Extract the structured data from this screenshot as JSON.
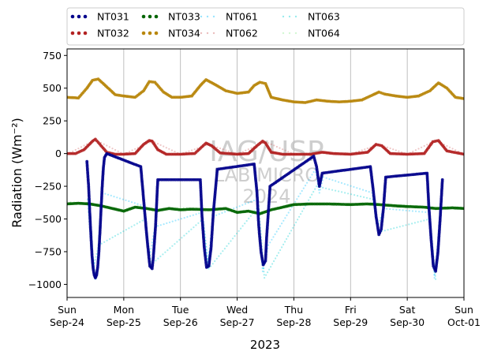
{
  "chart_data": {
    "type": "scatter",
    "xlabel": "2023",
    "ylabel": "Radiation (Wm⁻²)",
    "ylim": [
      -1100,
      800
    ],
    "xlim": [
      0,
      7
    ],
    "yticks": [
      750,
      500,
      250,
      0,
      -250,
      -500,
      -750,
      -1000
    ],
    "xticks": [
      {
        "day": "Sun",
        "date": "Sep-24"
      },
      {
        "day": "Mon",
        "date": "Sep-25"
      },
      {
        "day": "Tue",
        "date": "Sep-26"
      },
      {
        "day": "Wed",
        "date": "Sep-27"
      },
      {
        "day": "Thu",
        "date": "Sep-28"
      },
      {
        "day": "Fri",
        "date": "Sep-29"
      },
      {
        "day": "Sat",
        "date": "Sep-30"
      },
      {
        "day": "Sun",
        "date": "Oct-01"
      }
    ],
    "grid": "vertical",
    "legend_position": "top",
    "watermark": [
      "IAG/USP",
      "LAB MICRO",
      "2024"
    ],
    "series": [
      {
        "name": "NT031",
        "color": "#00008b",
        "style": "dots",
        "x": [
          0.35,
          0.38,
          0.4,
          0.42,
          0.44,
          0.46,
          0.48,
          0.5,
          0.52,
          0.54,
          0.56,
          0.58,
          0.6,
          0.62,
          0.64,
          0.66,
          0.7,
          1.3,
          1.35,
          1.4,
          1.44,
          1.46,
          1.5,
          1.52,
          1.56,
          1.6,
          2.35,
          2.38,
          2.42,
          2.46,
          2.5,
          2.54,
          2.58,
          2.65,
          3.3,
          3.35,
          3.38,
          3.42,
          3.46,
          3.5,
          3.52,
          3.58,
          4.35,
          4.4,
          4.45,
          4.5,
          5.35,
          5.4,
          5.45,
          5.5,
          5.54,
          5.58,
          5.62,
          6.35,
          6.38,
          6.42,
          6.46,
          6.5,
          6.54,
          6.58,
          6.62
        ],
        "y": [
          -60,
          -250,
          -450,
          -620,
          -780,
          -880,
          -930,
          -950,
          -930,
          -870,
          -760,
          -600,
          -420,
          -250,
          -110,
          -30,
          0,
          -100,
          -350,
          -600,
          -780,
          -860,
          -880,
          -800,
          -560,
          -200,
          -200,
          -480,
          -720,
          -870,
          -860,
          -720,
          -450,
          -120,
          -80,
          -300,
          -550,
          -750,
          -850,
          -820,
          -640,
          -250,
          -20,
          -100,
          -250,
          -150,
          -100,
          -280,
          -480,
          -620,
          -580,
          -420,
          -180,
          -150,
          -400,
          -650,
          -860,
          -900,
          -760,
          -500,
          -200
        ]
      },
      {
        "name": "NT032",
        "color": "#b22222",
        "style": "dots",
        "x": [
          0,
          0.15,
          0.3,
          0.45,
          0.5,
          0.55,
          0.7,
          0.85,
          1,
          1.2,
          1.35,
          1.45,
          1.5,
          1.6,
          1.75,
          2,
          2.25,
          2.35,
          2.45,
          2.55,
          2.7,
          3,
          3.2,
          3.35,
          3.45,
          3.5,
          3.6,
          3.8,
          4,
          4.3,
          4.5,
          4.7,
          5,
          5.3,
          5.45,
          5.55,
          5.7,
          6,
          6.3,
          6.45,
          6.55,
          6.7,
          7
        ],
        "y": [
          0,
          0,
          30,
          95,
          110,
          85,
          10,
          -5,
          -5,
          0,
          70,
          100,
          95,
          30,
          -5,
          -5,
          0,
          40,
          80,
          60,
          5,
          -5,
          0,
          60,
          95,
          80,
          10,
          -5,
          -5,
          -5,
          10,
          0,
          -5,
          10,
          70,
          60,
          0,
          -5,
          0,
          90,
          100,
          20,
          -5
        ]
      },
      {
        "name": "NT033",
        "color": "#006400",
        "style": "dots",
        "x": [
          0,
          0.2,
          0.4,
          0.6,
          0.8,
          1,
          1.2,
          1.4,
          1.6,
          1.8,
          2,
          2.2,
          2.5,
          2.8,
          3,
          3.2,
          3.4,
          3.6,
          3.8,
          4,
          4.3,
          4.6,
          5,
          5.3,
          5.5,
          5.8,
          6,
          6.3,
          6.5,
          6.8,
          7
        ],
        "y": [
          -385,
          -380,
          -385,
          -400,
          -420,
          -440,
          -410,
          -420,
          -435,
          -420,
          -430,
          -425,
          -430,
          -420,
          -450,
          -440,
          -460,
          -430,
          -410,
          -390,
          -385,
          -385,
          -390,
          -385,
          -390,
          -400,
          -405,
          -410,
          -420,
          -415,
          -420
        ]
      },
      {
        "name": "NT034",
        "color": "#b8860b",
        "style": "dots",
        "x": [
          0,
          0.2,
          0.35,
          0.45,
          0.55,
          0.7,
          0.85,
          1,
          1.2,
          1.35,
          1.45,
          1.55,
          1.7,
          1.85,
          2,
          2.2,
          2.35,
          2.45,
          2.6,
          2.8,
          3,
          3.2,
          3.3,
          3.4,
          3.5,
          3.6,
          3.8,
          4,
          4.2,
          4.4,
          4.6,
          4.8,
          5,
          5.2,
          5.4,
          5.5,
          5.6,
          5.8,
          6,
          6.2,
          6.4,
          6.55,
          6.7,
          6.85,
          7
        ],
        "y": [
          430,
          425,
          500,
          560,
          570,
          510,
          450,
          440,
          430,
          480,
          550,
          545,
          470,
          430,
          430,
          440,
          520,
          565,
          530,
          480,
          460,
          470,
          520,
          545,
          535,
          430,
          410,
          395,
          390,
          410,
          400,
          395,
          400,
          410,
          450,
          470,
          455,
          440,
          430,
          440,
          480,
          540,
          500,
          430,
          420
        ]
      },
      {
        "name": "NT061",
        "color": "#00bfff",
        "style": "faint-dots",
        "x": [
          0.38,
          0.44,
          0.5,
          0.56,
          0.62,
          1.35,
          1.45,
          1.55,
          2.38,
          2.48,
          2.58,
          3.35,
          3.45,
          3.55,
          4.38,
          4.45,
          4.52,
          5.38,
          5.48,
          5.58,
          6.38,
          6.48,
          6.58
        ],
        "y": [
          -300,
          -700,
          -960,
          -780,
          -300,
          -400,
          -800,
          -560,
          -450,
          -850,
          -480,
          -350,
          -900,
          -700,
          -120,
          -300,
          -180,
          -300,
          -560,
          -420,
          -450,
          -950,
          -500
        ]
      },
      {
        "name": "NT062",
        "color": "#cd5c5c",
        "style": "faint-dots",
        "x": [
          0,
          0.5,
          1,
          1.5,
          2,
          2.5,
          3,
          3.5,
          4,
          4.5,
          5,
          5.5,
          6,
          6.5,
          7
        ],
        "y": [
          -5,
          105,
          -5,
          95,
          -5,
          70,
          -5,
          90,
          -5,
          10,
          -5,
          70,
          -5,
          100,
          -5
        ]
      },
      {
        "name": "NT063",
        "color": "#00ced1",
        "style": "faint-dots",
        "x": [
          0.36,
          0.46,
          0.56,
          1.38,
          1.48,
          2.4,
          2.5,
          3.38,
          3.48,
          4.4,
          5.4,
          5.5,
          6.4,
          6.5
        ],
        "y": [
          -350,
          -880,
          -700,
          -500,
          -850,
          -500,
          -880,
          -400,
          -950,
          -250,
          -350,
          -600,
          -500,
          -960
        ]
      },
      {
        "name": "NT064",
        "color": "#90ee90",
        "style": "faint-dots",
        "x": [
          0,
          0.25,
          0.5,
          0.75,
          1,
          1.25,
          1.5,
          1.75,
          2,
          2.5,
          3,
          3.5,
          4,
          4.5,
          5,
          5.5,
          6,
          6.5,
          7
        ],
        "y": [
          -370,
          -375,
          -395,
          -415,
          -430,
          -400,
          -420,
          -425,
          -415,
          -420,
          -440,
          -445,
          -400,
          -385,
          -385,
          -385,
          -395,
          -410,
          -410
        ]
      }
    ]
  }
}
